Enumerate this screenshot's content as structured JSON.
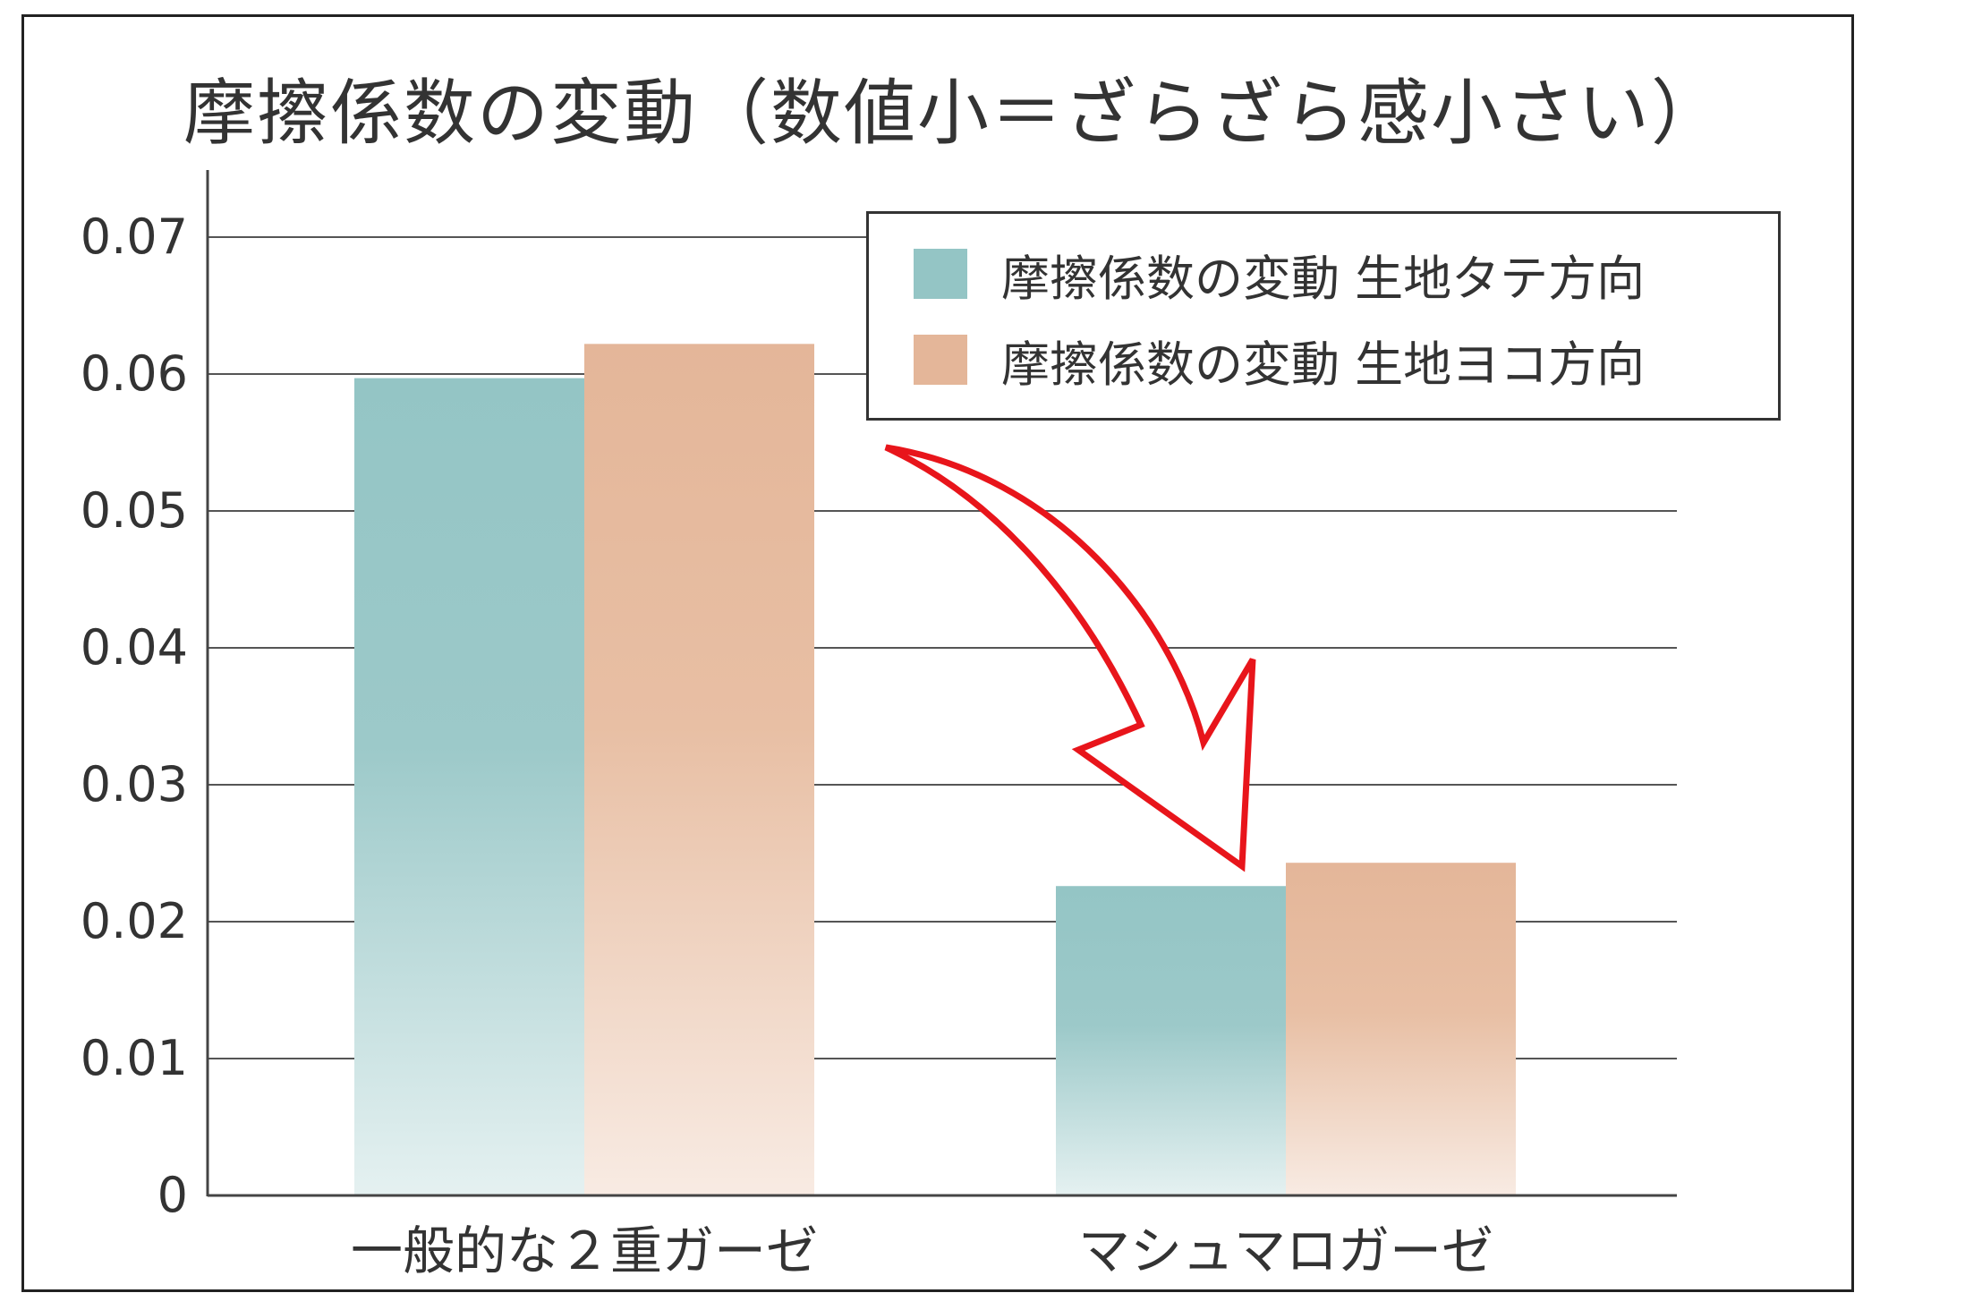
{
  "chart_data": {
    "type": "bar",
    "title": "摩擦係数の変動（数値小＝ざらざら感小さい）",
    "xlabel": "",
    "ylabel": "",
    "categories": [
      "一般的な２重ガーゼ",
      "マシュマロガーゼ"
    ],
    "series": [
      {
        "name": "摩擦係数の変動 生地タテ方向",
        "values": [
          0.0597,
          0.0226
        ],
        "color": "#94c5c5"
      },
      {
        "name": "摩擦係数の変動 生地ヨコ方向",
        "values": [
          0.0622,
          0.0243
        ],
        "color": "#e4b699"
      }
    ],
    "ylim": [
      0,
      0.075
    ],
    "yticks": [
      "0",
      "0.01",
      "0.02",
      "0.03",
      "0.04",
      "0.05",
      "0.06",
      "0.07"
    ],
    "ytick_values": [
      0,
      0.01,
      0.02,
      0.03,
      0.04,
      0.05,
      0.06,
      0.07
    ],
    "grid": true,
    "legend_position": "top-right",
    "annotations": [
      {
        "type": "arrow",
        "color": "#e8151b",
        "from": "一般的な２重ガーゼ",
        "to": "マシュマロガーゼ"
      }
    ]
  }
}
